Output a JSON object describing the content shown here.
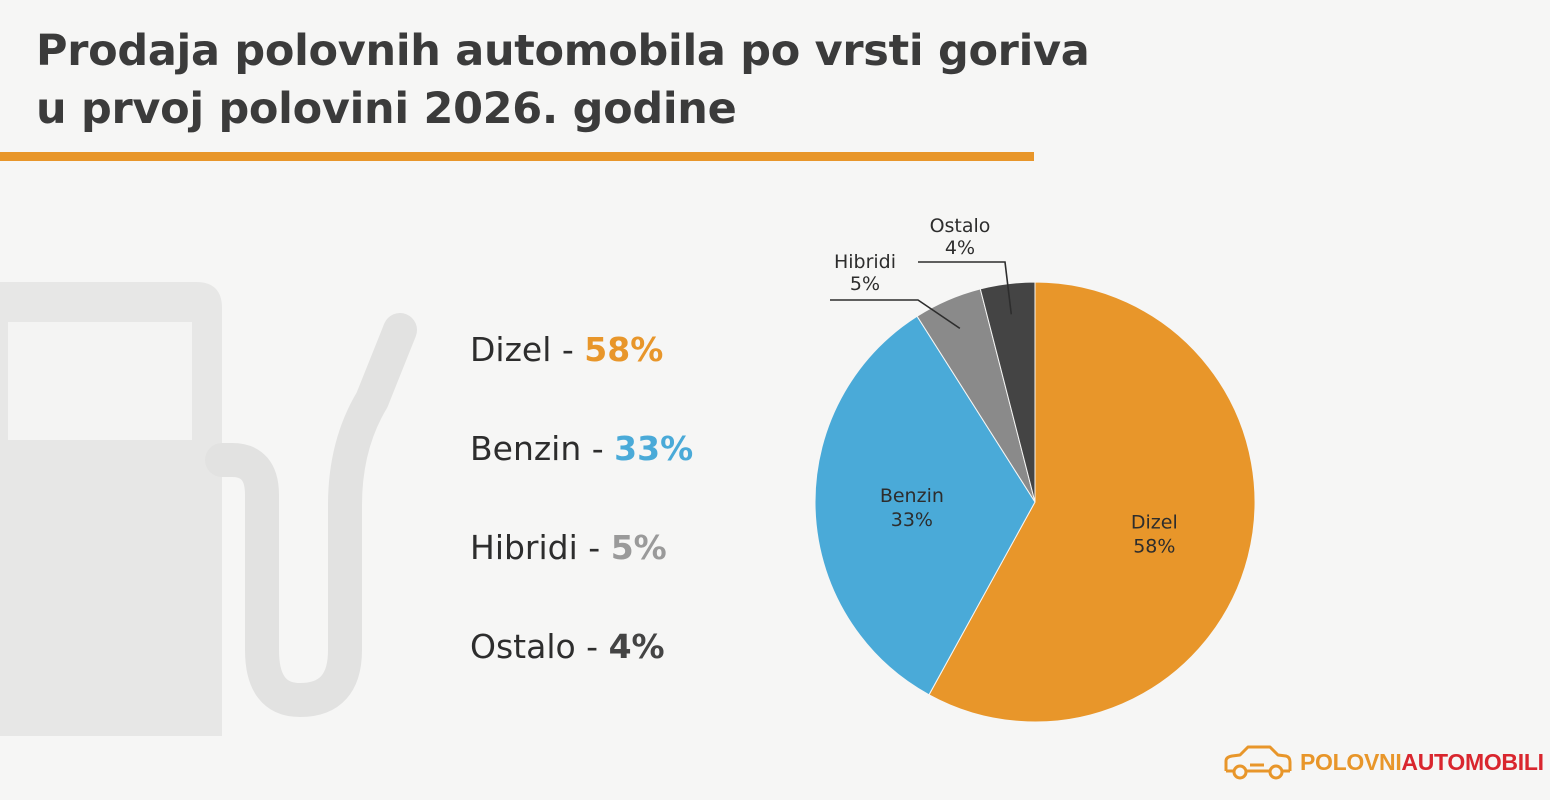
{
  "title_lines": [
    "Prodaja polovnih automobila po vrsti goriva",
    "u prvoj polovini 2026. godine"
  ],
  "colors": {
    "accent": "#e8962a",
    "dizel": "#e8962a",
    "benzin": "#4aaad8",
    "hibridi": "#8a8a8a",
    "ostalo": "#444444",
    "logo_red": "#d9262e"
  },
  "legend": [
    {
      "label": "Dizel -",
      "value": "58%"
    },
    {
      "label": "Benzin -",
      "value": "33%"
    },
    {
      "label": "Hibridi -",
      "value": "5%"
    },
    {
      "label": "Ostalo -",
      "value": "4%"
    }
  ],
  "chart_data": {
    "type": "pie",
    "categories": [
      "Dizel",
      "Benzin",
      "Hibridi",
      "Ostalo"
    ],
    "values": [
      58,
      33,
      5,
      4
    ],
    "value_labels": [
      "58%",
      "33%",
      "5%",
      "4%"
    ],
    "start": "12 o'clock",
    "direction": "clockwise"
  },
  "logo": {
    "part1": "POLOVNI",
    "part2": "AUTOMOBILI",
    "icon": "car-icon"
  }
}
